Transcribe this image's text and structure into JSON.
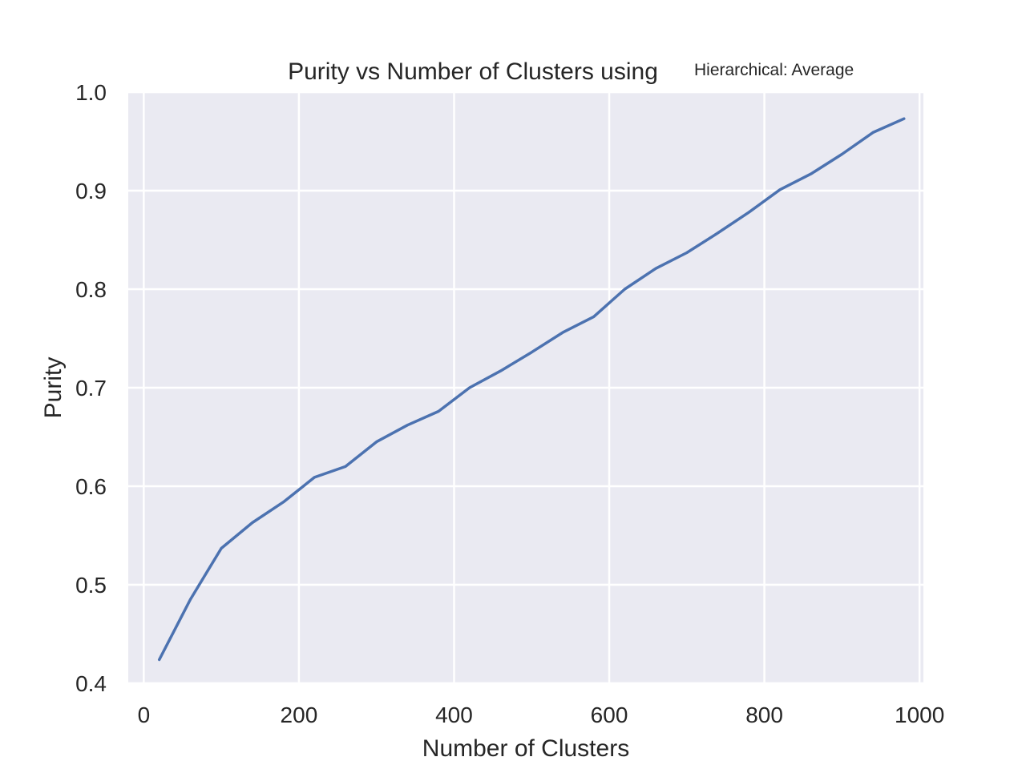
{
  "chart_data": {
    "type": "line",
    "title": "Purity vs Number of Clusters using",
    "title_suffix": "Hierarchical: Average",
    "xlabel": "Number of Clusters",
    "ylabel": "Purity",
    "xlim": [
      -20,
      1005
    ],
    "ylim": [
      0.4,
      1.0
    ],
    "xticks": [
      0,
      200,
      400,
      600,
      800,
      1000
    ],
    "yticks": [
      0.4,
      0.5,
      0.6,
      0.7,
      0.8,
      0.9,
      1.0
    ],
    "xtick_labels": [
      "0",
      "200",
      "400",
      "600",
      "800",
      "1000"
    ],
    "ytick_labels": [
      "0.4",
      "0.5",
      "0.6",
      "0.7",
      "0.8",
      "0.9",
      "1.0"
    ],
    "grid": true,
    "background_color": "#eaeaf2",
    "grid_color": "#ffffff",
    "series": [
      {
        "color": "#4c72b0",
        "x": [
          20,
          60,
          100,
          140,
          180,
          220,
          260,
          300,
          340,
          380,
          420,
          460,
          500,
          540,
          580,
          620,
          660,
          700,
          740,
          780,
          820,
          860,
          900,
          940,
          980
        ],
        "y": [
          0.424,
          0.485,
          0.537,
          0.563,
          0.584,
          0.609,
          0.62,
          0.645,
          0.662,
          0.676,
          0.7,
          0.717,
          0.736,
          0.756,
          0.772,
          0.8,
          0.821,
          0.837,
          0.857,
          0.878,
          0.901,
          0.917,
          0.937,
          0.959,
          0.973
        ]
      }
    ]
  }
}
